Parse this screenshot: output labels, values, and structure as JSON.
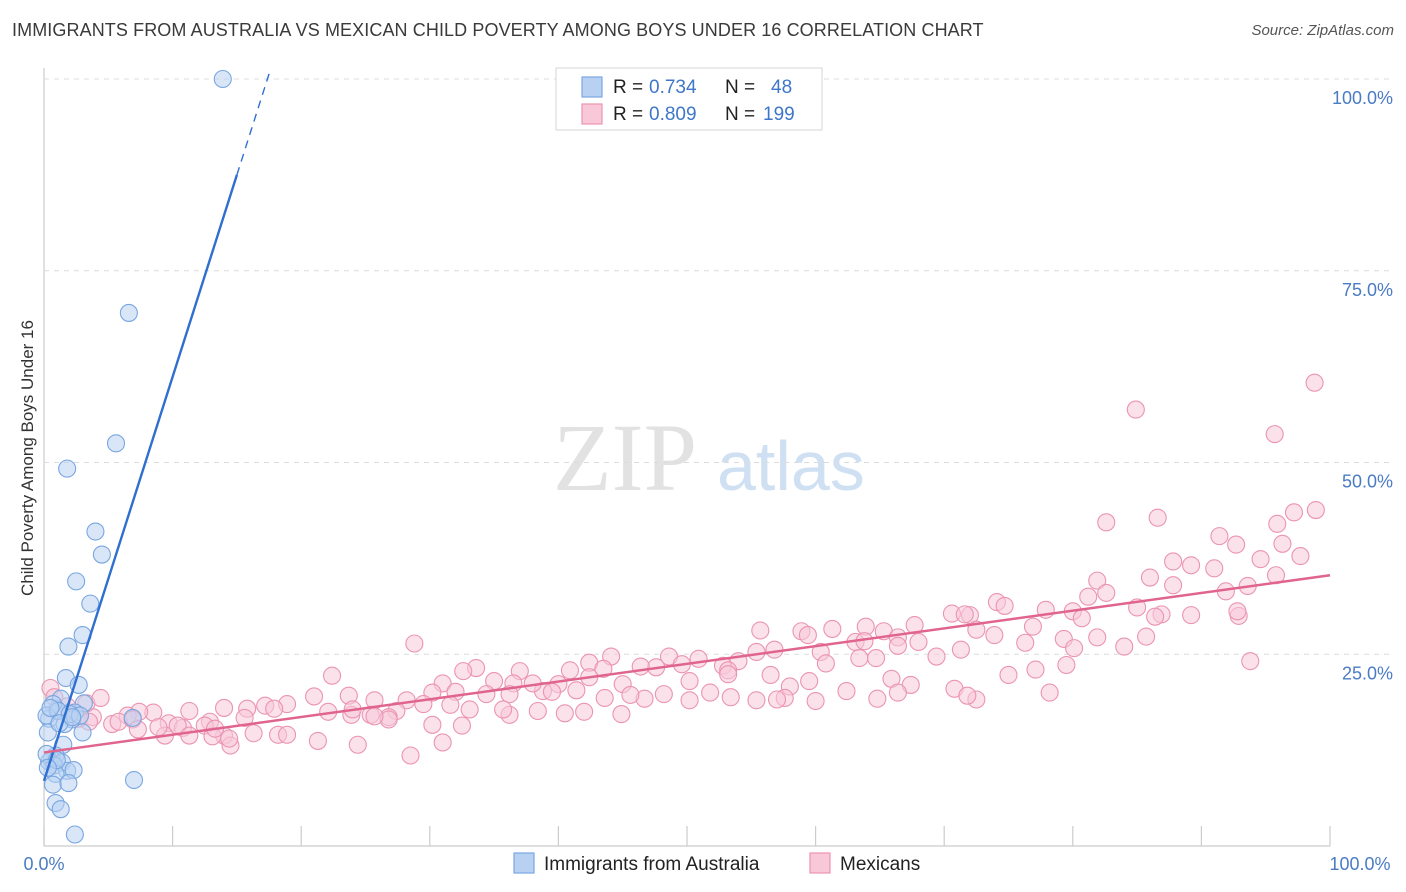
{
  "title": "IMMIGRANTS FROM AUSTRALIA VS MEXICAN CHILD POVERTY AMONG BOYS UNDER 16 CORRELATION CHART",
  "source": "Source: ZipAtlas.com",
  "watermark": {
    "zip": "ZIP",
    "atlas": "atlas"
  },
  "colors": {
    "blue_fill": "#b8d1f3",
    "blue_stroke": "#7aa6e0",
    "blue_line": "#2f6fcf",
    "pink_fill": "#f8c8d8",
    "pink_stroke": "#eb94b2",
    "pink_line": "#e0648e",
    "tick_label": "#4a7cc4",
    "grid": "#dcdcdc"
  },
  "legend": {
    "series": [
      {
        "r_label": "R =",
        "r_value": "0.734",
        "n_label": "N =",
        "n_value": "48"
      },
      {
        "r_label": "R =",
        "r_value": "0.809",
        "n_label": "N =",
        "n_value": "199"
      }
    ]
  },
  "bottom_legend": [
    "Immigrants from Australia",
    "Mexicans"
  ],
  "chart_data": {
    "type": "scatter",
    "title": "IMMIGRANTS FROM AUSTRALIA VS MEXICAN CHILD POVERTY AMONG BOYS UNDER 16 CORRELATION CHART",
    "xlabel": "",
    "ylabel": "Child Poverty Among Boys Under 16",
    "xlim": [
      0,
      100
    ],
    "ylim": [
      0,
      100
    ],
    "x_tick_labels": [
      "0.0%",
      "100.0%"
    ],
    "y_ticks": [
      25,
      50,
      75,
      100
    ],
    "y_tick_labels": [
      "25.0%",
      "50.0%",
      "75.0%",
      "100.0%"
    ],
    "series": [
      {
        "name": "Immigrants from Australia",
        "r": 0.734,
        "n": 48,
        "trend": {
          "x0": 0.0,
          "y0": 8.5,
          "x1": 15.0,
          "y1": 87.5,
          "dash_to_x": 17.6
        },
        "points": [
          [
            13.9,
            100
          ],
          [
            6.6,
            69.5
          ],
          [
            5.6,
            52.5
          ],
          [
            1.8,
            49.2
          ],
          [
            4.0,
            41.0
          ],
          [
            4.5,
            38.0
          ],
          [
            2.5,
            34.5
          ],
          [
            3.6,
            31.6
          ],
          [
            3.0,
            27.5
          ],
          [
            1.9,
            26.0
          ],
          [
            1.7,
            21.9
          ],
          [
            2.7,
            21.0
          ],
          [
            1.3,
            19.2
          ],
          [
            3.1,
            18.6
          ],
          [
            1.0,
            17.8
          ],
          [
            0.7,
            18.5
          ],
          [
            2.4,
            17.4
          ],
          [
            6.9,
            16.7
          ],
          [
            2.2,
            16.5
          ],
          [
            0.4,
            16.6
          ],
          [
            1.6,
            15.9
          ],
          [
            3.0,
            14.8
          ],
          [
            0.3,
            14.8
          ],
          [
            1.5,
            13.2
          ],
          [
            0.9,
            11.8
          ],
          [
            0.6,
            11.3
          ],
          [
            0.4,
            11.0
          ],
          [
            1.4,
            10.9
          ],
          [
            0.8,
            10.5
          ],
          [
            1.8,
            9.8
          ],
          [
            2.3,
            9.9
          ],
          [
            0.9,
            9.4
          ],
          [
            0.7,
            8.0
          ],
          [
            1.9,
            8.2
          ],
          [
            7.0,
            8.6
          ],
          [
            0.9,
            5.6
          ],
          [
            1.3,
            4.8
          ],
          [
            2.4,
            1.5
          ],
          [
            0.2,
            17.0
          ],
          [
            1.1,
            17.6
          ],
          [
            2.0,
            17.2
          ],
          [
            2.8,
            17.0
          ],
          [
            0.5,
            18.0
          ],
          [
            1.2,
            16.0
          ],
          [
            0.2,
            12.0
          ],
          [
            2.2,
            16.8
          ],
          [
            1.0,
            11.2
          ],
          [
            0.3,
            10.2
          ]
        ]
      },
      {
        "name": "Mexicans",
        "r": 0.809,
        "n": 199,
        "trend": {
          "x0": 0.0,
          "y0": 12.2,
          "x1": 100.0,
          "y1": 35.3
        },
        "points": [
          [
            98.8,
            60.4
          ],
          [
            95.7,
            53.7
          ],
          [
            84.9,
            56.9
          ],
          [
            97.2,
            43.5
          ],
          [
            98.9,
            43.8
          ],
          [
            95.9,
            42.0
          ],
          [
            82.6,
            42.2
          ],
          [
            86.6,
            42.8
          ],
          [
            91.4,
            40.4
          ],
          [
            92.7,
            39.3
          ],
          [
            96.3,
            39.4
          ],
          [
            97.7,
            37.8
          ],
          [
            94.6,
            37.4
          ],
          [
            87.8,
            37.1
          ],
          [
            89.2,
            36.6
          ],
          [
            86.0,
            35.0
          ],
          [
            81.9,
            34.6
          ],
          [
            95.8,
            35.3
          ],
          [
            87.8,
            34.0
          ],
          [
            93.6,
            33.9
          ],
          [
            91.9,
            33.2
          ],
          [
            82.6,
            33.0
          ],
          [
            81.2,
            32.5
          ],
          [
            74.1,
            31.8
          ],
          [
            77.9,
            30.8
          ],
          [
            85.0,
            31.1
          ],
          [
            74.7,
            31.3
          ],
          [
            72.0,
            30.1
          ],
          [
            86.9,
            30.2
          ],
          [
            80.0,
            30.6
          ],
          [
            89.2,
            30.1
          ],
          [
            86.4,
            29.9
          ],
          [
            80.7,
            29.7
          ],
          [
            70.6,
            30.3
          ],
          [
            71.6,
            30.2
          ],
          [
            76.9,
            28.6
          ],
          [
            92.9,
            30.0
          ],
          [
            73.9,
            27.5
          ],
          [
            65.3,
            28.0
          ],
          [
            66.4,
            27.2
          ],
          [
            81.9,
            27.2
          ],
          [
            85.7,
            27.3
          ],
          [
            58.9,
            28.0
          ],
          [
            63.9,
            28.6
          ],
          [
            55.7,
            28.1
          ],
          [
            59.4,
            27.5
          ],
          [
            61.3,
            28.3
          ],
          [
            63.1,
            26.6
          ],
          [
            66.4,
            26.1
          ],
          [
            68.0,
            26.6
          ],
          [
            76.3,
            26.5
          ],
          [
            79.3,
            27.0
          ],
          [
            84.0,
            26.0
          ],
          [
            56.8,
            25.6
          ],
          [
            60.4,
            25.3
          ],
          [
            64.7,
            24.5
          ],
          [
            71.3,
            25.6
          ],
          [
            80.1,
            25.8
          ],
          [
            55.4,
            25.3
          ],
          [
            54.0,
            24.1
          ],
          [
            52.8,
            23.5
          ],
          [
            48.6,
            24.7
          ],
          [
            50.9,
            24.4
          ],
          [
            49.6,
            23.7
          ],
          [
            60.8,
            23.8
          ],
          [
            69.4,
            24.7
          ],
          [
            93.8,
            24.1
          ],
          [
            63.4,
            24.5
          ],
          [
            47.6,
            23.3
          ],
          [
            44.1,
            24.7
          ],
          [
            53.2,
            22.9
          ],
          [
            46.4,
            23.4
          ],
          [
            42.4,
            23.9
          ],
          [
            43.5,
            23.1
          ],
          [
            40.9,
            22.9
          ],
          [
            37.0,
            22.8
          ],
          [
            33.6,
            23.2
          ],
          [
            32.6,
            22.8
          ],
          [
            22.4,
            22.2
          ],
          [
            28.8,
            26.4
          ],
          [
            31.0,
            21.2
          ],
          [
            36.5,
            21.2
          ],
          [
            38.8,
            20.2
          ],
          [
            42.4,
            22.0
          ],
          [
            45.0,
            21.1
          ],
          [
            35.0,
            21.5
          ],
          [
            38.0,
            21.2
          ],
          [
            40.0,
            21.1
          ],
          [
            46.7,
            19.2
          ],
          [
            53.2,
            22.4
          ],
          [
            56.5,
            22.3
          ],
          [
            58.0,
            20.8
          ],
          [
            65.9,
            21.8
          ],
          [
            70.8,
            20.5
          ],
          [
            67.4,
            21.0
          ],
          [
            72.5,
            19.1
          ],
          [
            75.0,
            22.3
          ],
          [
            77.1,
            23.0
          ],
          [
            79.5,
            23.6
          ],
          [
            30.2,
            20.0
          ],
          [
            32.0,
            20.1
          ],
          [
            34.4,
            19.8
          ],
          [
            36.2,
            19.8
          ],
          [
            39.5,
            20.1
          ],
          [
            41.4,
            20.3
          ],
          [
            43.6,
            19.3
          ],
          [
            45.6,
            19.7
          ],
          [
            48.2,
            19.8
          ],
          [
            50.2,
            19.0
          ],
          [
            51.8,
            20.0
          ],
          [
            53.4,
            19.4
          ],
          [
            55.4,
            19.0
          ],
          [
            57.6,
            19.3
          ],
          [
            60.0,
            18.9
          ],
          [
            62.4,
            20.2
          ],
          [
            64.8,
            19.2
          ],
          [
            66.4,
            20.0
          ],
          [
            28.2,
            19.0
          ],
          [
            25.7,
            19.0
          ],
          [
            23.7,
            19.6
          ],
          [
            21.0,
            19.5
          ],
          [
            18.9,
            18.5
          ],
          [
            17.2,
            18.3
          ],
          [
            15.8,
            17.9
          ],
          [
            14.0,
            18.0
          ],
          [
            27.4,
            17.6
          ],
          [
            29.5,
            18.5
          ],
          [
            31.6,
            18.4
          ],
          [
            33.1,
            17.8
          ],
          [
            36.2,
            17.1
          ],
          [
            38.4,
            17.6
          ],
          [
            40.5,
            17.3
          ],
          [
            42.0,
            17.5
          ],
          [
            44.9,
            17.2
          ],
          [
            22.1,
            17.5
          ],
          [
            23.9,
            17.1
          ],
          [
            25.4,
            17.1
          ],
          [
            26.8,
            16.8
          ],
          [
            24.0,
            17.8
          ],
          [
            26.8,
            16.5
          ],
          [
            30.2,
            15.8
          ],
          [
            32.5,
            15.7
          ],
          [
            11.3,
            17.6
          ],
          [
            12.9,
            16.2
          ],
          [
            17.9,
            17.9
          ],
          [
            15.6,
            16.7
          ],
          [
            8.5,
            17.4
          ],
          [
            9.7,
            16.0
          ],
          [
            10.8,
            15.4
          ],
          [
            12.5,
            15.7
          ],
          [
            14.0,
            14.4
          ],
          [
            14.5,
            13.1
          ],
          [
            16.3,
            14.7
          ],
          [
            18.2,
            14.5
          ],
          [
            18.9,
            14.5
          ],
          [
            21.3,
            13.7
          ],
          [
            24.4,
            13.2
          ],
          [
            25.7,
            16.9
          ],
          [
            28.5,
            11.8
          ],
          [
            31.0,
            13.5
          ],
          [
            7.4,
            17.5
          ],
          [
            6.5,
            17.0
          ],
          [
            5.3,
            15.9
          ],
          [
            3.8,
            16.8
          ],
          [
            3.3,
            18.6
          ],
          [
            2.7,
            16.6
          ],
          [
            2.0,
            17.4
          ],
          [
            0.5,
            20.6
          ],
          [
            0.8,
            19.4
          ],
          [
            1.8,
            18.2
          ],
          [
            4.4,
            19.3
          ],
          [
            5.8,
            16.2
          ],
          [
            6.9,
            16.5
          ],
          [
            3.5,
            16.2
          ],
          [
            9.4,
            14.4
          ],
          [
            10.4,
            15.7
          ],
          [
            11.3,
            14.4
          ],
          [
            13.1,
            14.3
          ],
          [
            7.3,
            15.2
          ],
          [
            8.9,
            15.5
          ],
          [
            14.4,
            14.0
          ],
          [
            13.3,
            15.3
          ],
          [
            50.2,
            21.5
          ],
          [
            35.7,
            17.8
          ],
          [
            59.5,
            21.5
          ],
          [
            57.0,
            19.1
          ],
          [
            71.8,
            19.6
          ],
          [
            67.7,
            28.8
          ],
          [
            78.2,
            20.0
          ],
          [
            72.5,
            28.2
          ],
          [
            63.8,
            26.7
          ],
          [
            91.0,
            36.2
          ],
          [
            92.8,
            30.6
          ]
        ]
      }
    ]
  }
}
